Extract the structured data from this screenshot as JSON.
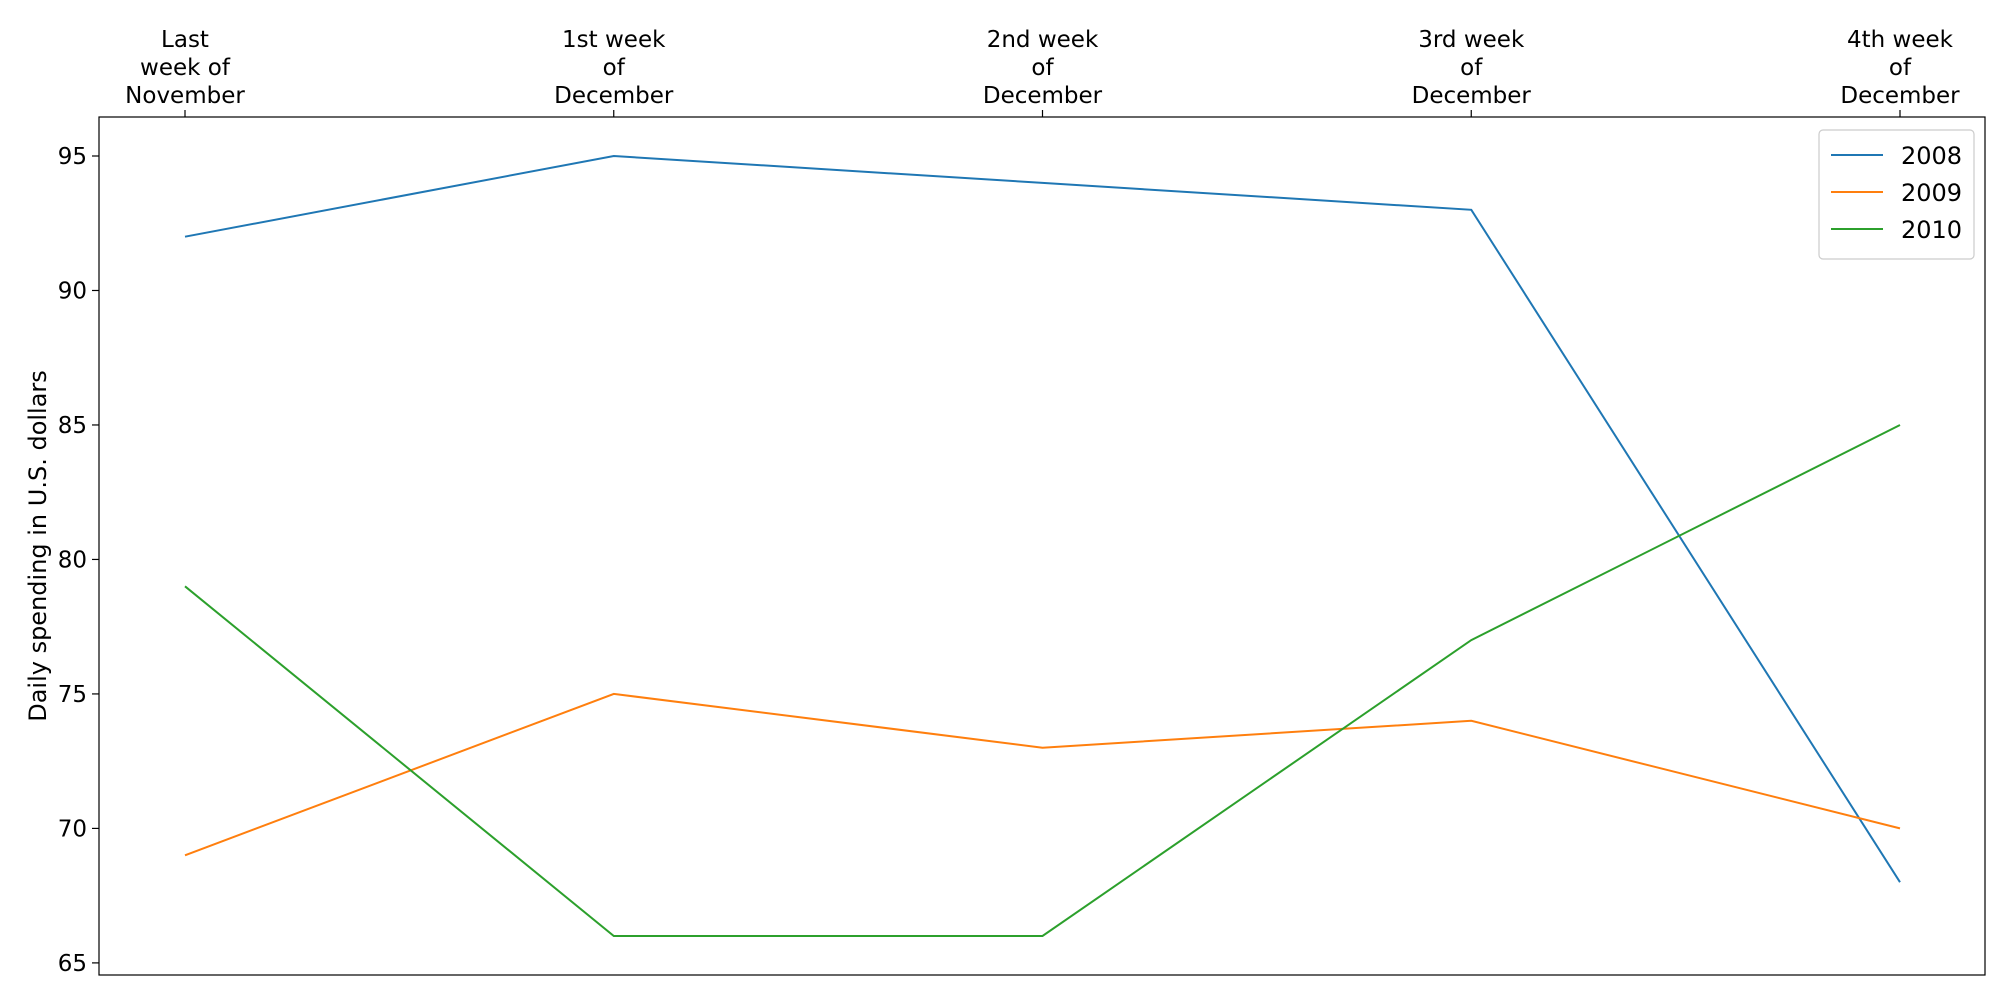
{
  "chart_data": {
    "type": "line",
    "categories": [
      [
        "Last",
        "week of",
        "November"
      ],
      [
        "1st week",
        "of",
        "December"
      ],
      [
        "2nd week",
        "of",
        "December"
      ],
      [
        "3rd week",
        "of",
        "December"
      ],
      [
        "4th week",
        "of",
        "December"
      ]
    ],
    "series": [
      {
        "name": "2008",
        "color": "#1f77b4",
        "values": [
          92,
          95,
          94,
          93,
          68
        ]
      },
      {
        "name": "2009",
        "color": "#ff7f0e",
        "values": [
          69,
          75,
          73,
          74,
          70
        ]
      },
      {
        "name": "2010",
        "color": "#2ca02c",
        "values": [
          79,
          66,
          66,
          77,
          85
        ]
      }
    ],
    "ylabel": "Daily spending in U.S. dollars",
    "yticks": [
      65,
      70,
      75,
      80,
      85,
      90,
      95
    ],
    "ylim": [
      64.55,
      96.45
    ],
    "x_axis_position": "top",
    "legend_position": "top-right",
    "grid": false
  }
}
